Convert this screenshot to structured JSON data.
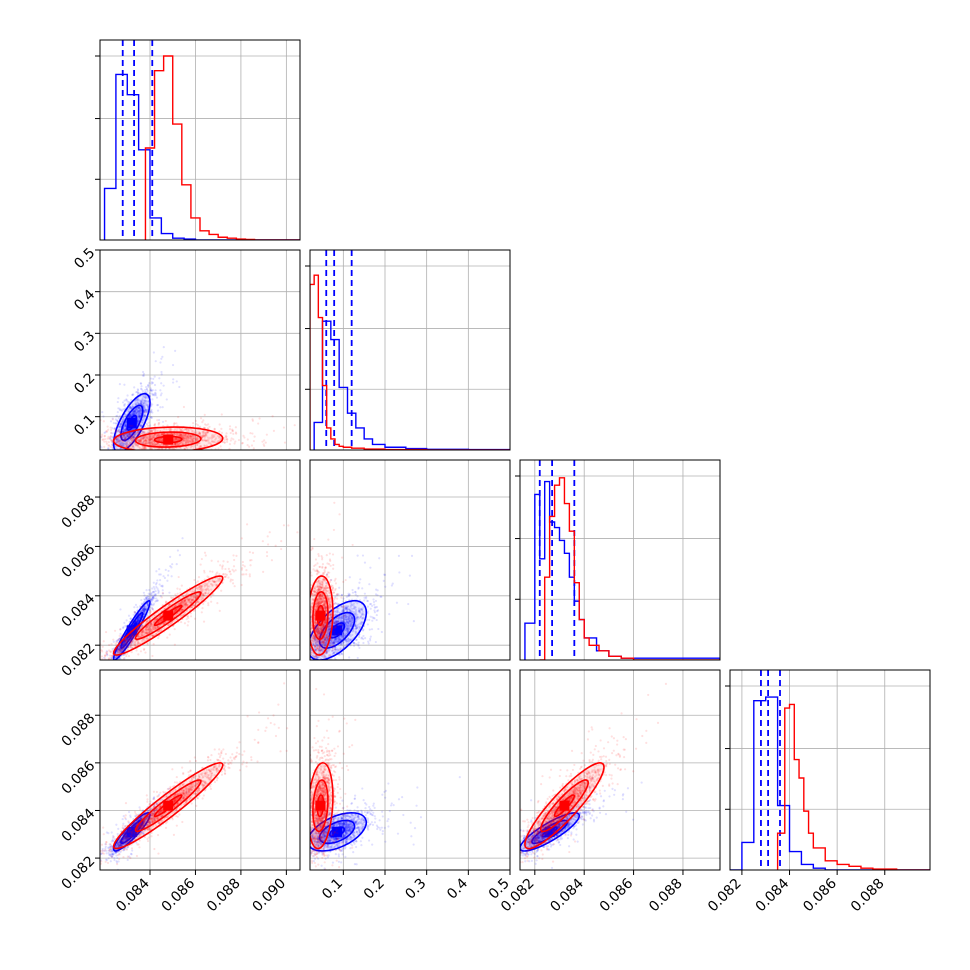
{
  "figure": {
    "type": "corner-plot"
  },
  "colors": {
    "blue": "#0000ff",
    "red": "#ff0000",
    "axis": "#000000",
    "grid": "#b0b0b0"
  },
  "chart_data": {
    "type": "corner",
    "dimensions": [
      {
        "id": "p0",
        "range": [
          0.0818,
          0.0906
        ],
        "ticks": [
          0.084,
          0.086,
          0.088,
          0.09
        ],
        "tick_labels": [
          "0.084",
          "0.086",
          "0.088",
          "0.090"
        ]
      },
      {
        "id": "p1",
        "range": [
          0.02,
          0.5
        ],
        "ticks": [
          0.1,
          0.2,
          0.3,
          0.4,
          0.5
        ],
        "tick_labels": [
          "0.1",
          "0.2",
          "0.3",
          "0.4",
          "0.5"
        ]
      },
      {
        "id": "p2",
        "range": [
          0.0814,
          0.0895
        ],
        "ticks": [
          0.082,
          0.084,
          0.086,
          0.088
        ],
        "tick_labels": [
          "0.082",
          "0.084",
          "0.086",
          "0.088"
        ]
      },
      {
        "id": "p3",
        "range": [
          0.0815,
          0.0899
        ],
        "ticks": [
          0.082,
          0.084,
          0.086,
          0.088
        ],
        "tick_labels": [
          "0.082",
          "0.084",
          "0.086",
          "0.088"
        ]
      }
    ],
    "series": [
      {
        "color": "#0000ff",
        "means": [
          0.0832,
          0.085,
          0.0826,
          0.0831
        ],
        "sigmas": [
          0.0004,
          0.035,
          0.0006,
          0.0004
        ],
        "correlations": {
          "1-0": 0.7,
          "2-0": 0.95,
          "2-1": 0.6,
          "3-0": 0.9,
          "3-1": 0.5,
          "3-2": 0.85
        },
        "quantiles": [
          [
            0.0828,
            0.0833,
            0.0841
          ],
          [
            0.059,
            0.078,
            0.12
          ],
          [
            0.0822,
            0.0827,
            0.0836
          ],
          [
            0.0828,
            0.0831,
            0.0836
          ]
        ],
        "histograms": [
          {
            "edges": [
              0.082,
              0.0825,
              0.083,
              0.0835,
              0.084,
              0.0845,
              0.085,
              0.0855,
              0.086,
              0.0865
            ],
            "counts": [
              0.28,
              0.9,
              0.79,
              0.49,
              0.12,
              0.035,
              0.01,
              0.005,
              0.0
            ]
          },
          {
            "edges": [
              0.03,
              0.05,
              0.07,
              0.09,
              0.11,
              0.13,
              0.15,
              0.17,
              0.2,
              0.25,
              0.3,
              0.4,
              0.5
            ],
            "counts": [
              0.15,
              0.7,
              0.6,
              0.34,
              0.2,
              0.12,
              0.06,
              0.03,
              0.015,
              0.008,
              0.004,
              0.002
            ]
          },
          {
            "edges": [
              0.0816,
              0.082,
              0.0822,
              0.0824,
              0.0826,
              0.0828,
              0.083,
              0.0832,
              0.0834,
              0.0836,
              0.0838,
              0.084,
              0.0845,
              0.085,
              0.0855,
              0.0895
            ],
            "counts": [
              0.2,
              0.9,
              0.55,
              0.97,
              0.75,
              0.72,
              0.65,
              0.58,
              0.45,
              0.32,
              0.22,
              0.12,
              0.05,
              0.02,
              0.01
            ]
          },
          {
            "edges": [
              0.0815,
              0.082,
              0.0825,
              0.083,
              0.0835,
              0.084,
              0.0845,
              0.085,
              0.0855,
              0.086
            ],
            "counts": [
              0.0,
              0.15,
              0.92,
              0.94,
              0.35,
              0.1,
              0.03,
              0.01,
              0.0
            ]
          }
        ]
      },
      {
        "color": "#ff0000",
        "means": [
          0.0848,
          0.045,
          0.0832,
          0.0842
        ],
        "sigmas": [
          0.0012,
          0.015,
          0.0008,
          0.0009
        ],
        "correlations": {
          "1-0": 0.1,
          "2-0": 0.95,
          "2-1": 0.1,
          "3-0": 0.95,
          "3-1": 0.2,
          "3-2": 0.9
        },
        "quantiles": null,
        "histograms": [
          {
            "edges": [
              0.0838,
              0.0842,
              0.0846,
              0.085,
              0.0854,
              0.0858,
              0.0862,
              0.0866,
              0.087,
              0.0874,
              0.0878,
              0.0882,
              0.0886,
              0.089
            ],
            "counts": [
              0.5,
              0.92,
              1.0,
              0.63,
              0.3,
              0.12,
              0.05,
              0.03,
              0.015,
              0.01,
              0.005,
              0.003,
              0.0
            ]
          },
          {
            "edges": [
              0.02,
              0.03,
              0.04,
              0.05,
              0.06,
              0.07,
              0.08,
              0.09,
              0.1,
              0.12,
              0.15,
              0.2,
              0.3,
              0.5
            ],
            "counts": [
              0.9,
              0.95,
              0.72,
              0.35,
              0.12,
              0.06,
              0.03,
              0.02,
              0.015,
              0.01,
              0.005,
              0.002,
              0.0
            ]
          },
          {
            "edges": [
              0.0822,
              0.0824,
              0.0826,
              0.0828,
              0.083,
              0.0832,
              0.0834,
              0.0836,
              0.0838,
              0.084,
              0.0842,
              0.0846,
              0.085,
              0.0855,
              0.086
            ],
            "counts": [
              0.0,
              0.45,
              0.78,
              0.95,
              0.99,
              0.85,
              0.7,
              0.42,
              0.22,
              0.12,
              0.08,
              0.05,
              0.02,
              0.01
            ]
          },
          {
            "edges": [
              0.0835,
              0.0838,
              0.084,
              0.0842,
              0.0844,
              0.0846,
              0.0848,
              0.085,
              0.0855,
              0.086,
              0.0865,
              0.087,
              0.0875,
              0.0885,
              0.089
            ],
            "counts": [
              0.2,
              0.88,
              0.9,
              0.6,
              0.5,
              0.32,
              0.2,
              0.12,
              0.05,
              0.03,
              0.02,
              0.01,
              0.005,
              0.0
            ]
          }
        ]
      }
    ]
  }
}
